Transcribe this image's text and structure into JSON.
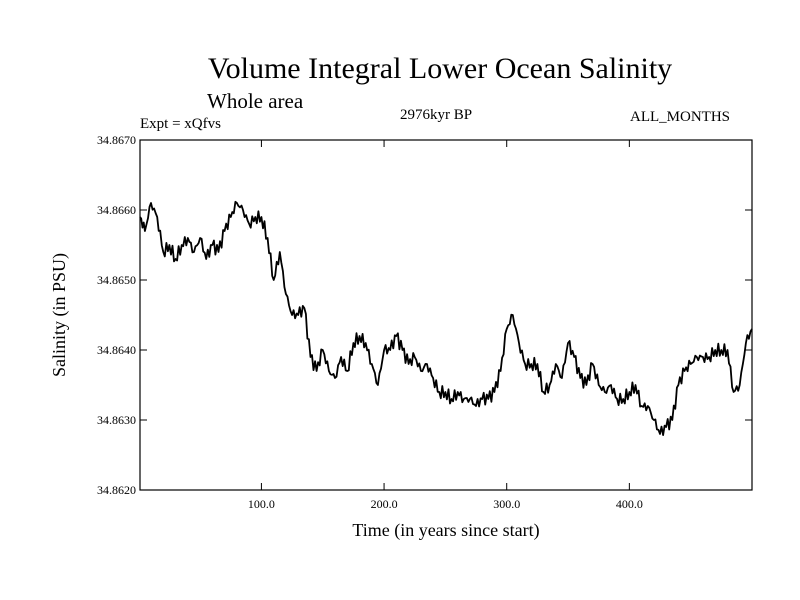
{
  "header": {
    "title": "Volume Integral Lower Ocean Salinity",
    "subtitle": "Whole area",
    "expt": "Expt = xQfvs",
    "period": "2976kyr BP",
    "months": "ALL_MONTHS"
  },
  "chart_data": {
    "type": "line",
    "title": "Volume Integral Lower Ocean Salinity",
    "xlabel": "Time (in years since start)",
    "ylabel": "Salinity (in PSU)",
    "xlim": [
      1,
      500
    ],
    "ylim": [
      34.862,
      34.867
    ],
    "x_ticks": [
      100,
      200,
      300,
      400
    ],
    "x_tick_labels": [
      "100.0",
      "200.0",
      "300.0",
      "400.0"
    ],
    "y_ticks": [
      34.862,
      34.863,
      34.864,
      34.865,
      34.866,
      34.867
    ],
    "y_tick_labels": [
      "34.8620",
      "34.8630",
      "34.8640",
      "34.8650",
      "34.8660",
      "34.8670"
    ],
    "grid": false,
    "line_color": "#000000",
    "series": [
      {
        "name": "salinity",
        "x": [
          1,
          5,
          10,
          15,
          20,
          25,
          30,
          35,
          40,
          45,
          50,
          55,
          60,
          65,
          70,
          75,
          80,
          85,
          90,
          95,
          100,
          105,
          110,
          115,
          120,
          125,
          130,
          135,
          140,
          145,
          150,
          155,
          160,
          165,
          170,
          175,
          180,
          185,
          190,
          195,
          200,
          205,
          210,
          215,
          220,
          225,
          230,
          235,
          240,
          245,
          250,
          255,
          260,
          265,
          270,
          275,
          280,
          285,
          290,
          295,
          300,
          305,
          310,
          315,
          320,
          325,
          330,
          335,
          340,
          345,
          350,
          355,
          360,
          365,
          370,
          375,
          380,
          385,
          390,
          395,
          400,
          405,
          410,
          415,
          420,
          425,
          430,
          435,
          440,
          445,
          450,
          455,
          460,
          465,
          470,
          475,
          480,
          485,
          490,
          495,
          500
        ],
        "values": [
          34.8659,
          34.8657,
          34.8661,
          34.8659,
          34.8654,
          34.8655,
          34.8653,
          34.8655,
          34.8656,
          34.8654,
          34.8656,
          34.8653,
          34.8655,
          34.8654,
          34.8657,
          34.8659,
          34.8661,
          34.866,
          34.8658,
          34.8659,
          34.8659,
          34.8656,
          34.865,
          34.8654,
          34.8648,
          34.8645,
          34.8645,
          34.8646,
          34.8639,
          34.8637,
          34.864,
          34.8637,
          34.8636,
          34.8639,
          34.8637,
          34.8641,
          34.8642,
          34.8641,
          34.8638,
          34.8635,
          34.864,
          34.864,
          34.8642,
          34.864,
          34.8638,
          34.8639,
          34.8637,
          34.8638,
          34.8636,
          34.8634,
          34.8634,
          34.8633,
          34.8634,
          34.8633,
          34.8633,
          34.8632,
          34.8633,
          34.8633,
          34.8634,
          34.8637,
          34.8643,
          34.8645,
          34.8641,
          34.8638,
          34.8638,
          34.8638,
          34.8634,
          34.8635,
          34.8638,
          34.8636,
          34.8641,
          34.8639,
          34.8636,
          34.8635,
          34.8638,
          34.8635,
          34.8634,
          34.8635,
          34.8633,
          34.8633,
          34.8634,
          34.8635,
          34.8632,
          34.8632,
          34.863,
          34.8628,
          34.8629,
          34.863,
          34.8635,
          34.8637,
          34.8638,
          34.8639,
          34.8639,
          34.8639,
          34.864,
          34.864,
          34.864,
          34.8634,
          34.8635,
          34.8641,
          34.8643
        ]
      }
    ]
  }
}
